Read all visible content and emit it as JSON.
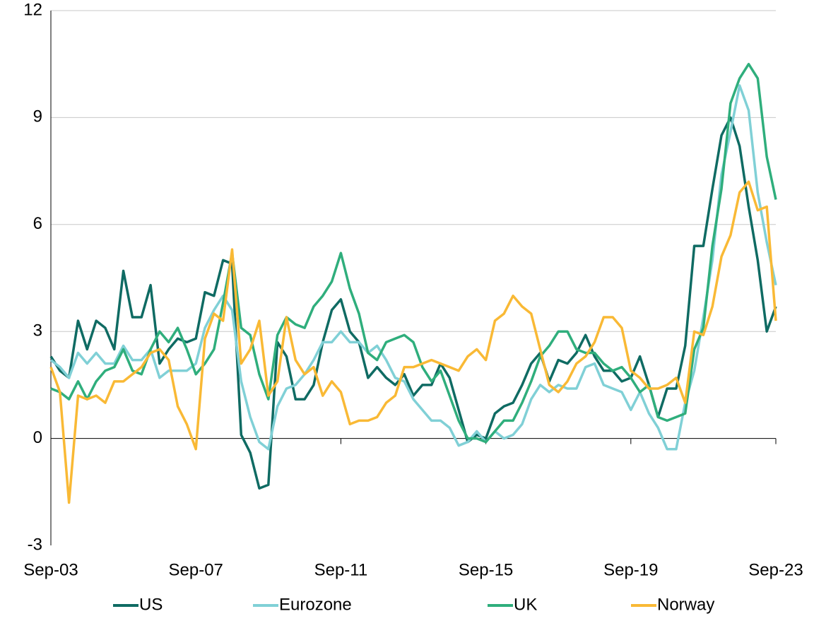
{
  "chart_data": {
    "type": "line",
    "x": [
      "Sep-03",
      "Dec-03",
      "Mar-04",
      "Jun-04",
      "Sep-04",
      "Dec-04",
      "Mar-05",
      "Jun-05",
      "Sep-05",
      "Dec-05",
      "Mar-06",
      "Jun-06",
      "Sep-06",
      "Dec-06",
      "Mar-07",
      "Jun-07",
      "Sep-07",
      "Dec-07",
      "Mar-08",
      "Jun-08",
      "Sep-08",
      "Dec-08",
      "Mar-09",
      "Jun-09",
      "Sep-09",
      "Dec-09",
      "Mar-10",
      "Jun-10",
      "Sep-10",
      "Dec-10",
      "Mar-11",
      "Jun-11",
      "Sep-11",
      "Dec-11",
      "Mar-12",
      "Jun-12",
      "Sep-12",
      "Dec-12",
      "Mar-13",
      "Jun-13",
      "Sep-13",
      "Dec-13",
      "Mar-14",
      "Jun-14",
      "Sep-14",
      "Dec-14",
      "Mar-15",
      "Jun-15",
      "Sep-15",
      "Dec-15",
      "Mar-16",
      "Jun-16",
      "Sep-16",
      "Dec-16",
      "Mar-17",
      "Jun-17",
      "Sep-17",
      "Dec-17",
      "Mar-18",
      "Jun-18",
      "Sep-18",
      "Dec-18",
      "Mar-19",
      "Jun-19",
      "Sep-19",
      "Dec-19",
      "Mar-20",
      "Jun-20",
      "Sep-20",
      "Dec-20",
      "Mar-21",
      "Jun-21",
      "Sep-21",
      "Dec-21",
      "Mar-22",
      "Jun-22",
      "Sep-22",
      "Dec-22",
      "Mar-23",
      "Jun-23",
      "Sep-23"
    ],
    "series": [
      {
        "name": "US",
        "color": "#0f6b63",
        "values": [
          2.3,
          1.9,
          1.7,
          3.3,
          2.5,
          3.3,
          3.1,
          2.5,
          4.7,
          3.4,
          3.4,
          4.3,
          2.1,
          2.5,
          2.8,
          2.7,
          2.8,
          4.1,
          4.0,
          5.0,
          4.9,
          0.1,
          -0.4,
          -1.4,
          -1.3,
          2.7,
          2.3,
          1.1,
          1.1,
          1.5,
          2.7,
          3.6,
          3.9,
          3.0,
          2.7,
          1.7,
          2.0,
          1.7,
          1.5,
          1.8,
          1.2,
          1.5,
          1.5,
          2.1,
          1.7,
          0.8,
          -0.1,
          0.1,
          0.0,
          0.7,
          0.9,
          1.0,
          1.5,
          2.1,
          2.4,
          1.6,
          2.2,
          2.1,
          2.4,
          2.9,
          2.3,
          1.9,
          1.9,
          1.6,
          1.7,
          2.3,
          1.5,
          0.6,
          1.4,
          1.4,
          2.6,
          5.4,
          5.4,
          7.0,
          8.5,
          9.0,
          8.2,
          6.5,
          5.0,
          3.0,
          3.7
        ]
      },
      {
        "name": "Eurozone",
        "color": "#80d0d6",
        "values": [
          2.2,
          2.0,
          1.7,
          2.4,
          2.1,
          2.4,
          2.1,
          2.1,
          2.6,
          2.2,
          2.2,
          2.5,
          1.7,
          1.9,
          1.9,
          1.9,
          2.1,
          3.1,
          3.6,
          4.0,
          3.6,
          1.6,
          0.6,
          -0.1,
          -0.3,
          0.9,
          1.4,
          1.5,
          1.8,
          2.2,
          2.7,
          2.7,
          3.0,
          2.7,
          2.7,
          2.4,
          2.6,
          2.2,
          1.7,
          1.6,
          1.1,
          0.8,
          0.5,
          0.5,
          0.3,
          -0.2,
          -0.1,
          0.2,
          -0.1,
          0.2,
          0.0,
          0.1,
          0.4,
          1.1,
          1.5,
          1.3,
          1.5,
          1.4,
          1.4,
          2.0,
          2.1,
          1.5,
          1.4,
          1.3,
          0.8,
          1.3,
          0.7,
          0.3,
          -0.3,
          -0.3,
          1.0,
          1.9,
          3.4,
          5.0,
          7.4,
          8.6,
          9.9,
          9.2,
          6.9,
          5.5,
          4.3
        ]
      },
      {
        "name": "UK",
        "color": "#2fae7c",
        "values": [
          1.4,
          1.3,
          1.1,
          1.6,
          1.1,
          1.6,
          1.9,
          2.0,
          2.5,
          1.9,
          1.8,
          2.5,
          3.0,
          2.7,
          3.1,
          2.5,
          1.8,
          2.1,
          2.5,
          3.8,
          5.2,
          3.1,
          2.9,
          1.8,
          1.1,
          2.9,
          3.4,
          3.2,
          3.1,
          3.7,
          4.0,
          4.4,
          5.2,
          4.2,
          3.5,
          2.4,
          2.2,
          2.7,
          2.8,
          2.9,
          2.7,
          2.0,
          1.6,
          1.9,
          1.2,
          0.5,
          0.0,
          0.0,
          -0.1,
          0.2,
          0.5,
          0.5,
          1.0,
          1.6,
          2.3,
          2.6,
          3.0,
          3.0,
          2.5,
          2.4,
          2.4,
          2.1,
          1.9,
          2.0,
          1.7,
          1.3,
          1.5,
          0.6,
          0.5,
          0.6,
          0.7,
          2.5,
          3.1,
          5.4,
          7.0,
          9.4,
          10.1,
          10.5,
          10.1,
          7.9,
          6.7
        ]
      },
      {
        "name": "Norway",
        "color": "#f9b935",
        "values": [
          2.0,
          1.3,
          -1.8,
          1.2,
          1.1,
          1.2,
          1.0,
          1.6,
          1.6,
          1.8,
          2.0,
          2.4,
          2.5,
          2.2,
          0.9,
          0.4,
          -0.3,
          2.8,
          3.5,
          3.3,
          5.3,
          2.1,
          2.5,
          3.3,
          1.2,
          1.6,
          3.4,
          2.2,
          1.8,
          2.0,
          1.2,
          1.6,
          1.3,
          0.4,
          0.5,
          0.5,
          0.6,
          1.0,
          1.2,
          2.0,
          2.0,
          2.1,
          2.2,
          2.1,
          2.0,
          1.9,
          2.3,
          2.5,
          2.2,
          3.3,
          3.5,
          4.0,
          3.7,
          3.5,
          2.5,
          1.5,
          1.3,
          1.6,
          2.1,
          2.3,
          2.7,
          3.4,
          3.4,
          3.1,
          1.9,
          1.7,
          1.4,
          1.4,
          1.5,
          1.7,
          1.0,
          3.0,
          2.9,
          3.7,
          5.1,
          5.7,
          6.9,
          7.2,
          6.4,
          6.5,
          3.3
        ]
      }
    ],
    "xlim": [
      "Sep-03",
      "Sep-23"
    ],
    "xticks": [
      "Sep-03",
      "Sep-07",
      "Sep-11",
      "Sep-15",
      "Sep-19",
      "Sep-23"
    ],
    "ylim": [
      -3,
      12
    ],
    "yticks": [
      -3,
      0,
      3,
      6,
      9,
      12
    ],
    "grid": true,
    "legend": "bottom"
  }
}
